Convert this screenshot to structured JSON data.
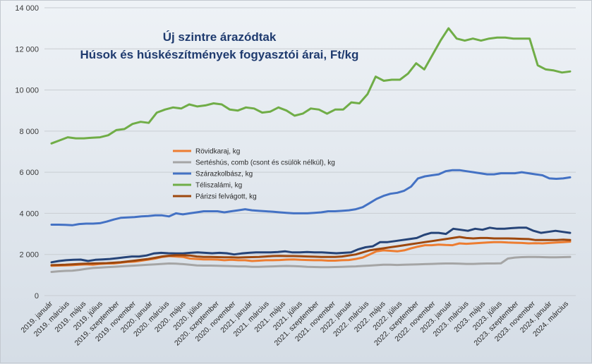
{
  "chart_data": {
    "type": "line",
    "title": "Új szintre árazódtak",
    "subtitle": "Húsok és húskészítmények fogyasztói árai, Ft/kg",
    "xlabel": "",
    "ylabel": "",
    "ylim": [
      0,
      14000
    ],
    "grid": true,
    "legend_placement": "center-left",
    "y_ticks": [
      "0",
      "2 000",
      "4 000",
      "6 000",
      "8 000",
      "10 000",
      "12 000",
      "14 000"
    ],
    "x_tick_labels": [
      "2019. január",
      "2019. március",
      "2019. május",
      "2019. július",
      "2019. szeptember",
      "2019. november",
      "2020. január",
      "2020. március",
      "2020. május",
      "2020. július",
      "2020. szeptember",
      "2020. november",
      "2021. január",
      "2021. március",
      "2021. május",
      "2021. július",
      "2021. szeptember",
      "2021. november",
      "2022. január",
      "2022. március",
      "2022. május",
      "2022. július",
      "2022. szeptember",
      "2022. november",
      "2023. január",
      "2023. március",
      "2023. május",
      "2023. július",
      "2023. szeptember",
      "2023. november",
      "2024. január",
      "2024. március"
    ],
    "series": [
      {
        "name": "Rövidkaraj, kg",
        "color": "#ed7d31",
        "values": [
          1450,
          1460,
          1470,
          1480,
          1500,
          1520,
          1500,
          1540,
          1560,
          1560,
          1600,
          1640,
          1650,
          1700,
          1750,
          1800,
          1880,
          1920,
          1900,
          1880,
          1800,
          1780,
          1760,
          1760,
          1750,
          1720,
          1740,
          1720,
          1720,
          1680,
          1700,
          1720,
          1720,
          1730,
          1750,
          1760,
          1740,
          1730,
          1720,
          1720,
          1700,
          1700,
          1720,
          1730,
          1780,
          1850,
          2000,
          2150,
          2200,
          2180,
          2150,
          2200,
          2300,
          2380,
          2450,
          2450,
          2480,
          2460,
          2450,
          2540,
          2520,
          2540,
          2560,
          2580,
          2600,
          2600,
          2580,
          2570,
          2560,
          2540,
          2550,
          2540,
          2560,
          2580,
          2600,
          2620
        ]
      },
      {
        "name": "Sertéshús, comb (csont és csülök nélkül), kg",
        "color": "#a5a5a5",
        "values": [
          1150,
          1180,
          1200,
          1210,
          1250,
          1300,
          1340,
          1360,
          1380,
          1400,
          1420,
          1440,
          1460,
          1480,
          1500,
          1520,
          1540,
          1560,
          1550,
          1530,
          1500,
          1470,
          1460,
          1460,
          1450,
          1440,
          1430,
          1420,
          1420,
          1400,
          1400,
          1410,
          1420,
          1430,
          1440,
          1430,
          1420,
          1400,
          1390,
          1380,
          1380,
          1390,
          1400,
          1410,
          1420,
          1440,
          1460,
          1480,
          1500,
          1500,
          1490,
          1500,
          1510,
          1520,
          1530,
          1540,
          1550,
          1560,
          1560,
          1550,
          1540,
          1540,
          1550,
          1560,
          1560,
          1570,
          1800,
          1850,
          1870,
          1880,
          1880,
          1870,
          1860,
          1860,
          1870,
          1880
        ]
      },
      {
        "name": "Szárazkolbász, kg",
        "color": "#4472c4",
        "values": [
          3450,
          3450,
          3440,
          3420,
          3480,
          3500,
          3500,
          3520,
          3600,
          3700,
          3780,
          3800,
          3820,
          3850,
          3870,
          3900,
          3900,
          3850,
          4000,
          3950,
          4000,
          4050,
          4100,
          4100,
          4100,
          4050,
          4100,
          4150,
          4200,
          4150,
          4120,
          4100,
          4080,
          4050,
          4020,
          4000,
          4000,
          4000,
          4020,
          4050,
          4100,
          4100,
          4120,
          4150,
          4200,
          4300,
          4500,
          4700,
          4850,
          4950,
          5000,
          5100,
          5300,
          5700,
          5800,
          5850,
          5900,
          6050,
          6100,
          6100,
          6050,
          6000,
          5950,
          5900,
          5900,
          5950,
          5950,
          5950,
          6000,
          5950,
          5900,
          5850,
          5700,
          5680,
          5700,
          5750
        ]
      },
      {
        "name": "Téliszalámi, kg",
        "color": "#70ad47",
        "values": [
          7400,
          7550,
          7700,
          7650,
          7650,
          7680,
          7700,
          7800,
          8050,
          8100,
          8350,
          8450,
          8400,
          8900,
          9050,
          9150,
          9100,
          9300,
          9200,
          9250,
          9350,
          9300,
          9050,
          9000,
          9150,
          9100,
          8900,
          8950,
          9150,
          9000,
          8750,
          8850,
          9100,
          9050,
          8850,
          9050,
          9050,
          9400,
          9350,
          9800,
          10650,
          10450,
          10500,
          10500,
          10800,
          11300,
          11000,
          11700,
          12400,
          13000,
          12500,
          12400,
          12500,
          12400,
          12500,
          12550,
          12550,
          12500,
          12500,
          12500,
          11200,
          11000,
          10950,
          10850,
          10900
        ]
      },
      {
        "name": "Párizsi felvágott, kg",
        "color": "#9e480e",
        "values": [
          1480,
          1490,
          1500,
          1520,
          1540,
          1550,
          1560,
          1570,
          1580,
          1600,
          1620,
          1660,
          1700,
          1740,
          1780,
          1840,
          1900,
          1940,
          1960,
          1960,
          1950,
          1900,
          1880,
          1880,
          1870,
          1860,
          1860,
          1850,
          1860,
          1870,
          1880,
          1900,
          1920,
          1930,
          1920,
          1920,
          1910,
          1900,
          1890,
          1880,
          1880,
          1880,
          1900,
          1950,
          2000,
          2100,
          2200,
          2250,
          2300,
          2350,
          2400,
          2450,
          2500,
          2550,
          2600,
          2650,
          2700,
          2750,
          2800,
          2850,
          2800,
          2780,
          2800,
          2800,
          2780,
          2780,
          2780,
          2770,
          2760,
          2750,
          2700,
          2700,
          2700,
          2700,
          2720,
          2700
        ]
      },
      {
        "name": "",
        "color": "#264478",
        "values": [
          1620,
          1680,
          1720,
          1740,
          1750,
          1680,
          1740,
          1760,
          1780,
          1820,
          1860,
          1900,
          1900,
          1950,
          2050,
          2080,
          2060,
          2050,
          2050,
          2080,
          2100,
          2080,
          2060,
          2080,
          2060,
          2000,
          2050,
          2080,
          2100,
          2100,
          2100,
          2120,
          2150,
          2100,
          2100,
          2120,
          2100,
          2100,
          2080,
          2060,
          2080,
          2100,
          2250,
          2350,
          2400,
          2600,
          2600,
          2650,
          2700,
          2750,
          2800,
          2950,
          3050,
          3050,
          3000,
          3250,
          3200,
          3150,
          3250,
          3200,
          3300,
          3250,
          3250,
          3280,
          3300,
          3300,
          3150,
          3050,
          3100,
          3150,
          3100,
          3050
        ]
      }
    ]
  }
}
